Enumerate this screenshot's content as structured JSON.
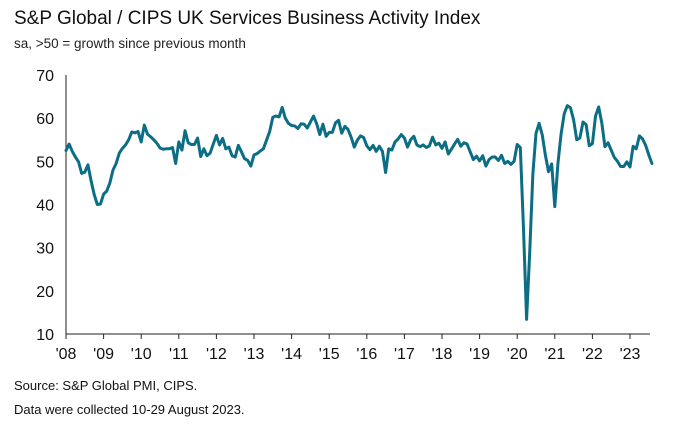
{
  "chart_data": {
    "type": "line",
    "title": "S&P Global / CIPS UK Services Business Activity Index",
    "subtitle": "sa, >50 = growth since previous month",
    "xlabel": "",
    "ylabel": "",
    "ylim": [
      10,
      70
    ],
    "yticks": [
      10,
      20,
      30,
      40,
      50,
      60,
      70
    ],
    "xticks": [
      "'08",
      "'09",
      "'10",
      "'11",
      "'12",
      "'13",
      "'14",
      "'15",
      "'16",
      "'17",
      "'18",
      "'19",
      "'20",
      "'21",
      "'22",
      "'23"
    ],
    "line_color": "#0c6e84",
    "grid": false,
    "series": [
      {
        "name": "UK Services Business Activity Index",
        "x_start": "2008-01",
        "frequency": "monthly",
        "values": [
          52.5,
          54.0,
          52.3,
          51.0,
          49.9,
          47.2,
          47.5,
          49.2,
          45.5,
          42.3,
          40.0,
          40.1,
          42.4,
          43.1,
          45.0,
          48.0,
          49.5,
          51.9,
          53.0,
          53.8,
          55.0,
          56.8,
          56.6,
          56.9,
          54.5,
          58.4,
          56.3,
          55.7,
          55.0,
          54.2,
          53.1,
          52.8,
          52.9,
          52.9,
          53.2,
          49.5,
          54.5,
          52.6,
          57.1,
          54.3,
          53.9,
          53.9,
          55.4,
          51.1,
          52.9,
          51.3,
          51.9,
          54.0,
          56.0,
          53.8,
          55.3,
          52.9,
          53.3,
          51.3,
          51.0,
          53.7,
          52.2,
          50.6,
          50.2,
          48.9,
          51.5,
          51.8,
          52.4,
          52.9,
          54.9,
          56.9,
          60.2,
          60.5,
          60.3,
          62.5,
          60.0,
          58.8,
          58.3,
          58.2,
          57.6,
          58.7,
          58.6,
          57.7,
          59.1,
          60.5,
          58.7,
          56.2,
          58.6,
          55.8,
          56.7,
          56.7,
          58.9,
          59.5,
          56.5,
          58.1,
          57.4,
          55.6,
          53.3,
          54.9,
          55.9,
          55.5,
          53.6,
          52.7,
          53.7,
          52.3,
          53.5,
          52.3,
          47.4,
          52.9,
          52.6,
          54.5,
          55.2,
          56.2,
          55.4,
          53.3,
          55.0,
          55.8,
          53.8,
          53.4,
          53.8,
          53.2,
          53.6,
          55.6,
          53.8,
          54.2,
          53.0,
          54.5,
          51.7,
          52.8,
          54.0,
          55.1,
          53.5,
          54.3,
          54.0,
          52.2,
          50.4,
          51.2,
          50.1,
          51.3,
          48.9,
          50.4,
          51.0,
          51.0,
          50.2,
          51.4,
          49.5,
          50.0,
          49.3,
          50.0,
          53.9,
          53.2,
          34.5,
          13.4,
          29.0,
          47.1,
          56.5,
          58.8,
          56.1,
          51.4,
          47.6,
          49.4,
          39.5,
          49.5,
          56.3,
          61.0,
          62.9,
          62.4,
          59.6,
          55.0,
          55.4,
          59.1,
          58.5,
          53.6,
          54.1,
          60.5,
          62.6,
          58.9,
          53.4,
          54.3,
          52.6,
          50.9,
          50.0,
          48.8,
          48.8,
          49.9,
          48.7,
          53.5,
          52.9,
          55.9,
          55.2,
          53.7,
          51.5,
          49.5
        ]
      }
    ]
  },
  "footer": {
    "source": "Source: S&P Global PMI, CIPS.",
    "collected": "Data were collected 10-29 August 2023."
  }
}
